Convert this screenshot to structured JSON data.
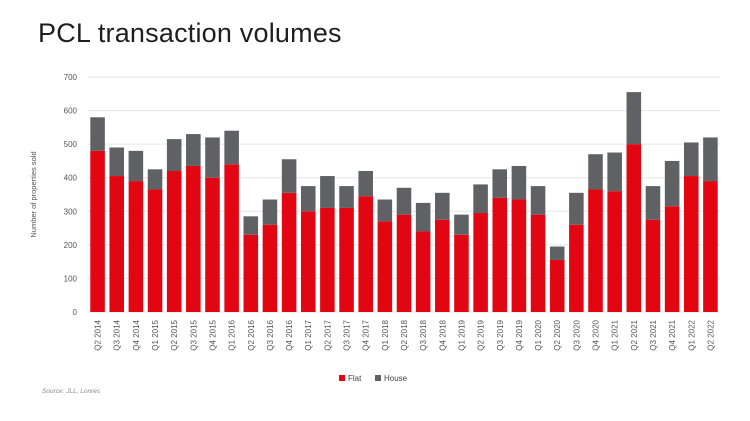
{
  "title": "PCL transaction volumes",
  "source": "Source: JLL, Lonres",
  "colors": {
    "Flat": "#e20613",
    "House": "#5f6164",
    "grid": "#e6e6e6"
  },
  "chart_data": {
    "type": "bar",
    "stacked": true,
    "title": "PCL transaction volumes",
    "xlabel": "",
    "ylabel": "Number of properties sold",
    "ylim": [
      0,
      700
    ],
    "yticks": [
      0,
      100,
      200,
      300,
      400,
      500,
      600,
      700
    ],
    "grid": true,
    "legend_position": "bottom",
    "categories": [
      "Q2 2014",
      "Q3 2014",
      "Q4 2014",
      "Q1 2015",
      "Q2 2015",
      "Q3 2015",
      "Q4 2015",
      "Q1 2016",
      "Q2 2016",
      "Q3 2016",
      "Q4 2016",
      "Q1 2017",
      "Q2 2017",
      "Q3 2017",
      "Q4 2017",
      "Q1 2018",
      "Q2 2018",
      "Q3 2018",
      "Q4 2018",
      "Q1 2019",
      "Q2 2019",
      "Q3 2019",
      "Q4 2019",
      "Q1 2020",
      "Q2 2020",
      "Q3 2020",
      "Q4 2020",
      "Q1 2021",
      "Q2 2021",
      "Q3 2021",
      "Q4 2021",
      "Q1 2022",
      "Q2 2022"
    ],
    "series": [
      {
        "name": "Flat",
        "values": [
          480,
          405,
          390,
          365,
          420,
          435,
          400,
          440,
          230,
          260,
          355,
          300,
          310,
          310,
          345,
          270,
          290,
          240,
          275,
          230,
          295,
          340,
          335,
          290,
          155,
          260,
          365,
          360,
          500,
          275,
          315,
          405,
          390
        ]
      },
      {
        "name": "House",
        "values": [
          100,
          85,
          90,
          60,
          95,
          95,
          120,
          100,
          55,
          75,
          100,
          75,
          95,
          65,
          75,
          65,
          80,
          85,
          80,
          60,
          85,
          85,
          100,
          85,
          40,
          95,
          105,
          115,
          155,
          100,
          135,
          100,
          130
        ]
      }
    ]
  }
}
